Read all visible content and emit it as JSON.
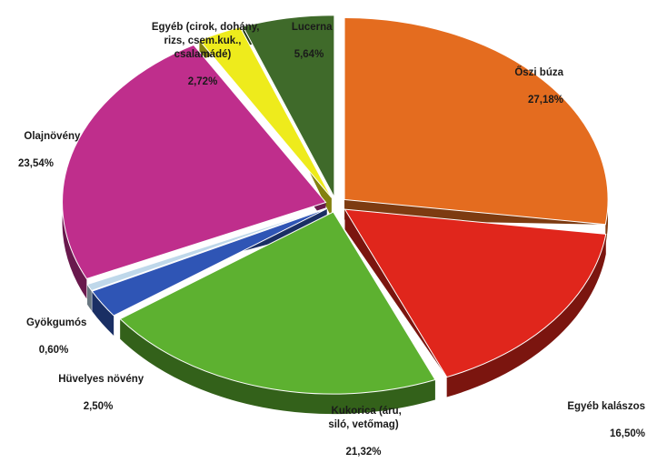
{
  "chart_data": {
    "type": "pie",
    "style": "3d-exploded",
    "slices": [
      {
        "label": "Őszi búza",
        "value": 27.18,
        "value_label": "27,18%",
        "color": "#E46C1F"
      },
      {
        "label": "Egyéb kalászos",
        "value": 16.5,
        "value_label": "16,50%",
        "color": "#E0261C"
      },
      {
        "label": "Kukorica (áru,\nsiló, vetőmag)",
        "value": 21.32,
        "value_label": "21,32%",
        "color": "#5DB130"
      },
      {
        "label": "Hüvelyes növény",
        "value": 2.5,
        "value_label": "2,50%",
        "color": "#2F55B5"
      },
      {
        "label": "Gyökgumós",
        "value": 0.6,
        "value_label": "0,60%",
        "color": "#BFD8EA"
      },
      {
        "label": "Olajnövény",
        "value": 23.54,
        "value_label": "23,54%",
        "color": "#BF2E8C"
      },
      {
        "label": "Egyéb (cirok, dohány,\nrizs, csem.kuk.,\ncsalamádé)",
        "value": 2.72,
        "value_label": "2,72%",
        "color": "#EEEB1C"
      },
      {
        "label": "Lucerna",
        "value": 5.64,
        "value_label": "5,64%",
        "color": "#3F6A2A"
      }
    ]
  }
}
